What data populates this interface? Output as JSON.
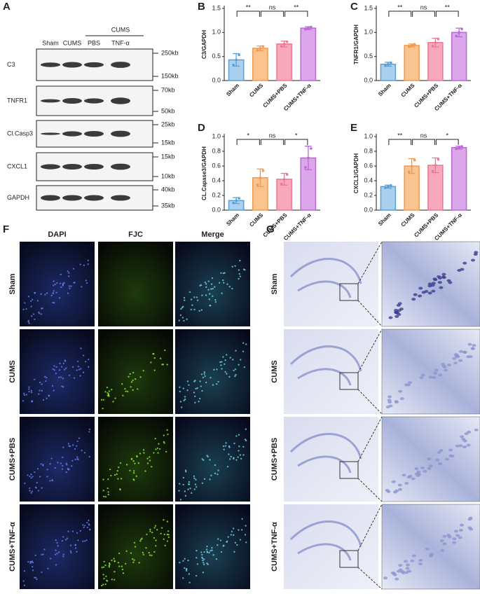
{
  "panel_labels": [
    "A",
    "B",
    "C",
    "D",
    "E",
    "F",
    "G"
  ],
  "blot": {
    "group_label": "CUMS",
    "lanes": [
      "Sham",
      "CUMS",
      "PBS",
      "TNF-α"
    ],
    "rows": [
      {
        "label": "C3",
        "markers": [
          "250kb",
          "150kb"
        ]
      },
      {
        "label": "TNFR1",
        "markers": [
          "70kb",
          "50kb"
        ]
      },
      {
        "label": "Cl.Casp3",
        "markers": [
          "25kb",
          "15kb"
        ]
      },
      {
        "label": "CXCL1",
        "markers": [
          "15kb",
          "10kb"
        ]
      },
      {
        "label": "GAPDH",
        "markers": [
          "40kb",
          "35kb"
        ]
      }
    ]
  },
  "fluorescence": {
    "columns": [
      "DAPI",
      "FJC",
      "Merge"
    ],
    "rows": [
      "Sham",
      "CUMS",
      "CUMS+PBS",
      "CUMS+TNF-α"
    ]
  },
  "nissl": {
    "rows": [
      "Sham",
      "CUMS",
      "CUMS+PBS",
      "CUMS+TNF-α"
    ]
  },
  "chart_data": [
    {
      "type": "bar",
      "y_label": "C3/GAPDH",
      "categories": [
        "Sham",
        "CUMS",
        "CUMS+PBS",
        "CUMS+TNF-α"
      ],
      "values": [
        0.43,
        0.67,
        0.76,
        1.09
      ],
      "errors": [
        0.13,
        0.05,
        0.06,
        0.03
      ],
      "colors": [
        "#a9d0ec",
        "#f9c490",
        "#f7a9bb",
        "#dba6ea"
      ],
      "edge_colors": [
        "#5b9fd3",
        "#f09a50",
        "#ea7895",
        "#b86ad4"
      ],
      "significance": [
        "**",
        "ns",
        "**"
      ],
      "ylim": [
        0,
        1.5
      ],
      "yticks": [
        {
          "value": 0,
          "label": "0.0"
        },
        0.5,
        {
          "value": 1,
          "label": "1.0"
        },
        1.5
      ]
    },
    {
      "type": "bar",
      "y_label": "TNFR1/GAPDH",
      "categories": [
        "Sham",
        "CUMS",
        "CUMS+PBS",
        "CUMS+TNF-α"
      ],
      "values": [
        0.34,
        0.73,
        0.79,
        1.0
      ],
      "errors": [
        0.04,
        0.03,
        0.09,
        0.09
      ],
      "colors": [
        "#a9d0ec",
        "#f9c490",
        "#f7a9bb",
        "#dba6ea"
      ],
      "edge_colors": [
        "#5b9fd3",
        "#f09a50",
        "#ea7895",
        "#b86ad4"
      ],
      "significance": [
        "**",
        "ns",
        "**"
      ],
      "ylim": [
        0,
        1.5
      ],
      "yticks": [
        {
          "value": 0,
          "label": "0.0"
        },
        0.5,
        {
          "value": 1,
          "label": "1.0"
        },
        1.5
      ]
    },
    {
      "type": "bar",
      "y_label": "CL.Capase3/GAPDH",
      "categories": [
        "Sham",
        "CUMS",
        "CUMS+PBS",
        "CUMS+TNF-α"
      ],
      "values": [
        0.13,
        0.44,
        0.42,
        0.71
      ],
      "errors": [
        0.04,
        0.12,
        0.08,
        0.16
      ],
      "colors": [
        "#a9d0ec",
        "#f9c490",
        "#f7a9bb",
        "#dba6ea"
      ],
      "edge_colors": [
        "#5b9fd3",
        "#f09a50",
        "#ea7895",
        "#b86ad4"
      ],
      "significance": [
        "*",
        "ns",
        "*"
      ],
      "ylim": [
        0,
        1
      ],
      "yticks": [
        {
          "value": 0,
          "label": "0.0"
        },
        0.2,
        0.4,
        0.6,
        0.8,
        {
          "value": 1,
          "label": "1.0"
        }
      ]
    },
    {
      "type": "bar",
      "y_label": "CXCL1/GAPDH",
      "categories": [
        "Sham",
        "CUMS",
        "CUMS+PBS",
        "CUMS+TNF-α"
      ],
      "values": [
        0.32,
        0.6,
        0.61,
        0.85
      ],
      "errors": [
        0.02,
        0.1,
        0.1,
        0.02
      ],
      "colors": [
        "#a9d0ec",
        "#f9c490",
        "#f7a9bb",
        "#dba6ea"
      ],
      "edge_colors": [
        "#5b9fd3",
        "#f09a50",
        "#ea7895",
        "#b86ad4"
      ],
      "significance": [
        "**",
        "ns",
        "*"
      ],
      "ylim": [
        0,
        1
      ],
      "yticks": [
        {
          "value": 0,
          "label": "0.0"
        },
        0.2,
        0.4,
        0.6,
        0.8,
        {
          "value": 1,
          "label": "1.0"
        }
      ]
    }
  ]
}
